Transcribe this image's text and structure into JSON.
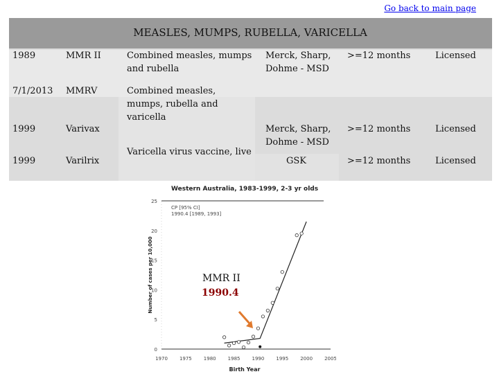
{
  "header": {
    "back_link": "Go back to main page"
  },
  "table": {
    "title": "MEASLES, MUMPS, RUBELLA, VARICELLA",
    "rows": [
      {
        "year": "1989",
        "name": "MMR II",
        "desc": "Combined measles, mumps and rubella",
        "maker": "Merck, Sharp, Dohme - MSD",
        "age": ">=12 months",
        "status": "Licensed"
      },
      {
        "year": "7/1/2013",
        "name": "MMRV",
        "desc": "Combined measles, mumps, rubella and varicella",
        "maker": "",
        "age": "",
        "status": ""
      },
      {
        "year": "1999",
        "name": "Varivax",
        "desc": "Varicella virus vaccine, live",
        "maker": "Merck, Sharp, Dohme - MSD",
        "age": ">=12 months",
        "status": "Licensed"
      },
      {
        "year": "1999",
        "name": "Varilrix",
        "desc": "",
        "maker": "GSK",
        "age": ">=12 months",
        "status": "Licensed"
      }
    ]
  },
  "figure": {
    "annotation_line1": "MMR II",
    "annotation_line2": "1990.4",
    "arrow_color": "#e07a2e",
    "annotation_color": "#8b0000"
  },
  "chart_data": {
    "type": "scatter",
    "title": "Western Australia, 1983-1999, 2-3 yr olds",
    "legend": [
      "CP [95% CI]",
      "1990.4 [1989, 1993]"
    ],
    "xlabel": "Birth Year",
    "ylabel": "Number of cases per 10,000",
    "xlim": [
      1970,
      2005
    ],
    "ylim": [
      0,
      25
    ],
    "x_ticks": [
      "1970",
      "1975",
      "1980",
      "1985",
      "1990",
      "1995",
      "2000",
      "2005"
    ],
    "y_ticks": [
      "0",
      "5",
      "10",
      "15",
      "20",
      "25"
    ],
    "points": [
      {
        "x": 1983,
        "y": 2.0
      },
      {
        "x": 1984,
        "y": 0.6
      },
      {
        "x": 1985,
        "y": 1.0
      },
      {
        "x": 1986,
        "y": 1.2
      },
      {
        "x": 1987,
        "y": 0.3
      },
      {
        "x": 1988,
        "y": 1.1
      },
      {
        "x": 1989,
        "y": 2.1
      },
      {
        "x": 1990,
        "y": 3.5
      },
      {
        "x": 1991,
        "y": 5.5
      },
      {
        "x": 1992,
        "y": 6.5
      },
      {
        "x": 1993,
        "y": 7.8
      },
      {
        "x": 1994,
        "y": 10.2
      },
      {
        "x": 1995,
        "y": 13.0
      },
      {
        "x": 1998,
        "y": 19.2
      },
      {
        "x": 1999,
        "y": 19.5
      }
    ],
    "fit_line": [
      {
        "x": 1983,
        "y": 1.0
      },
      {
        "x": 1990.4,
        "y": 1.8
      },
      {
        "x": 2000,
        "y": 21.5
      }
    ],
    "changepoint": {
      "x": 1990.4,
      "y": 0.4
    }
  }
}
